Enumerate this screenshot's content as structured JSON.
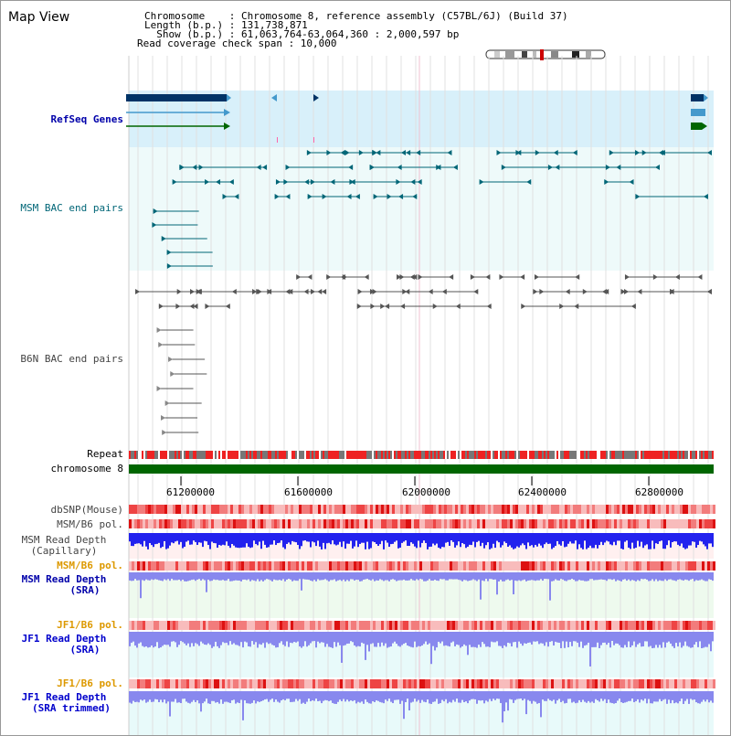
{
  "title": "Map View",
  "info": {
    "chromosome": "Chromosome    : Chromosome 8, reference assembly (C57BL/6J) (Build 37)",
    "length": "Length (b.p.) : 131,738,871",
    "show": "  Show (b.p.) : 61,063,764-63,064,360 : 2,000,597 bp",
    "coverage": "Read coverage check span : 10,000"
  },
  "tracks": {
    "refseq": "RefSeq Genes",
    "msm_bac": "MSM BAC end pairs",
    "b6n_bac": "B6N BAC end pairs",
    "repeat": "Repeat",
    "chromosome": "chromosome 8",
    "dbsnp": "dbSNP(Mouse)",
    "msm_b6_pol": "MSM/B6 pol.",
    "msm_read_depth": "MSM Read Depth",
    "capillary": "(Capillary)",
    "msm_b6_pol2": "MSM/B6 pol.",
    "msm_read_depth2": "MSM Read Depth",
    "sra": "(SRA)",
    "jf1_b6_pol": "JF1/B6 pol.",
    "jf1_read_depth": "JF1 Read Depth",
    "sra2": "(SRA)",
    "jf1_b6_pol2": "JF1/B6 pol.",
    "jf1_read_depth2": "JF1 Read Depth",
    "sra_trimmed": "(SRA trimmed)"
  },
  "ticks": [
    "61200000",
    "61600000",
    "62000000",
    "62400000",
    "62800000"
  ],
  "colors": {
    "refseq_bg": "#d8f0fa",
    "bac_bg": "#eefafa",
    "refseq_dark": "#003366",
    "refseq_light": "#4499cc",
    "refseq_green": "#006600",
    "chromosome_bar": "#006600",
    "repeat_red": "#ee2222",
    "repeat_gray": "#777777",
    "depth_blue": "#2222ee",
    "depth_light": "#8888ee",
    "pol_red": "#ee3333",
    "label_orange": "#dd9900",
    "label_blue": "#0000cc"
  }
}
